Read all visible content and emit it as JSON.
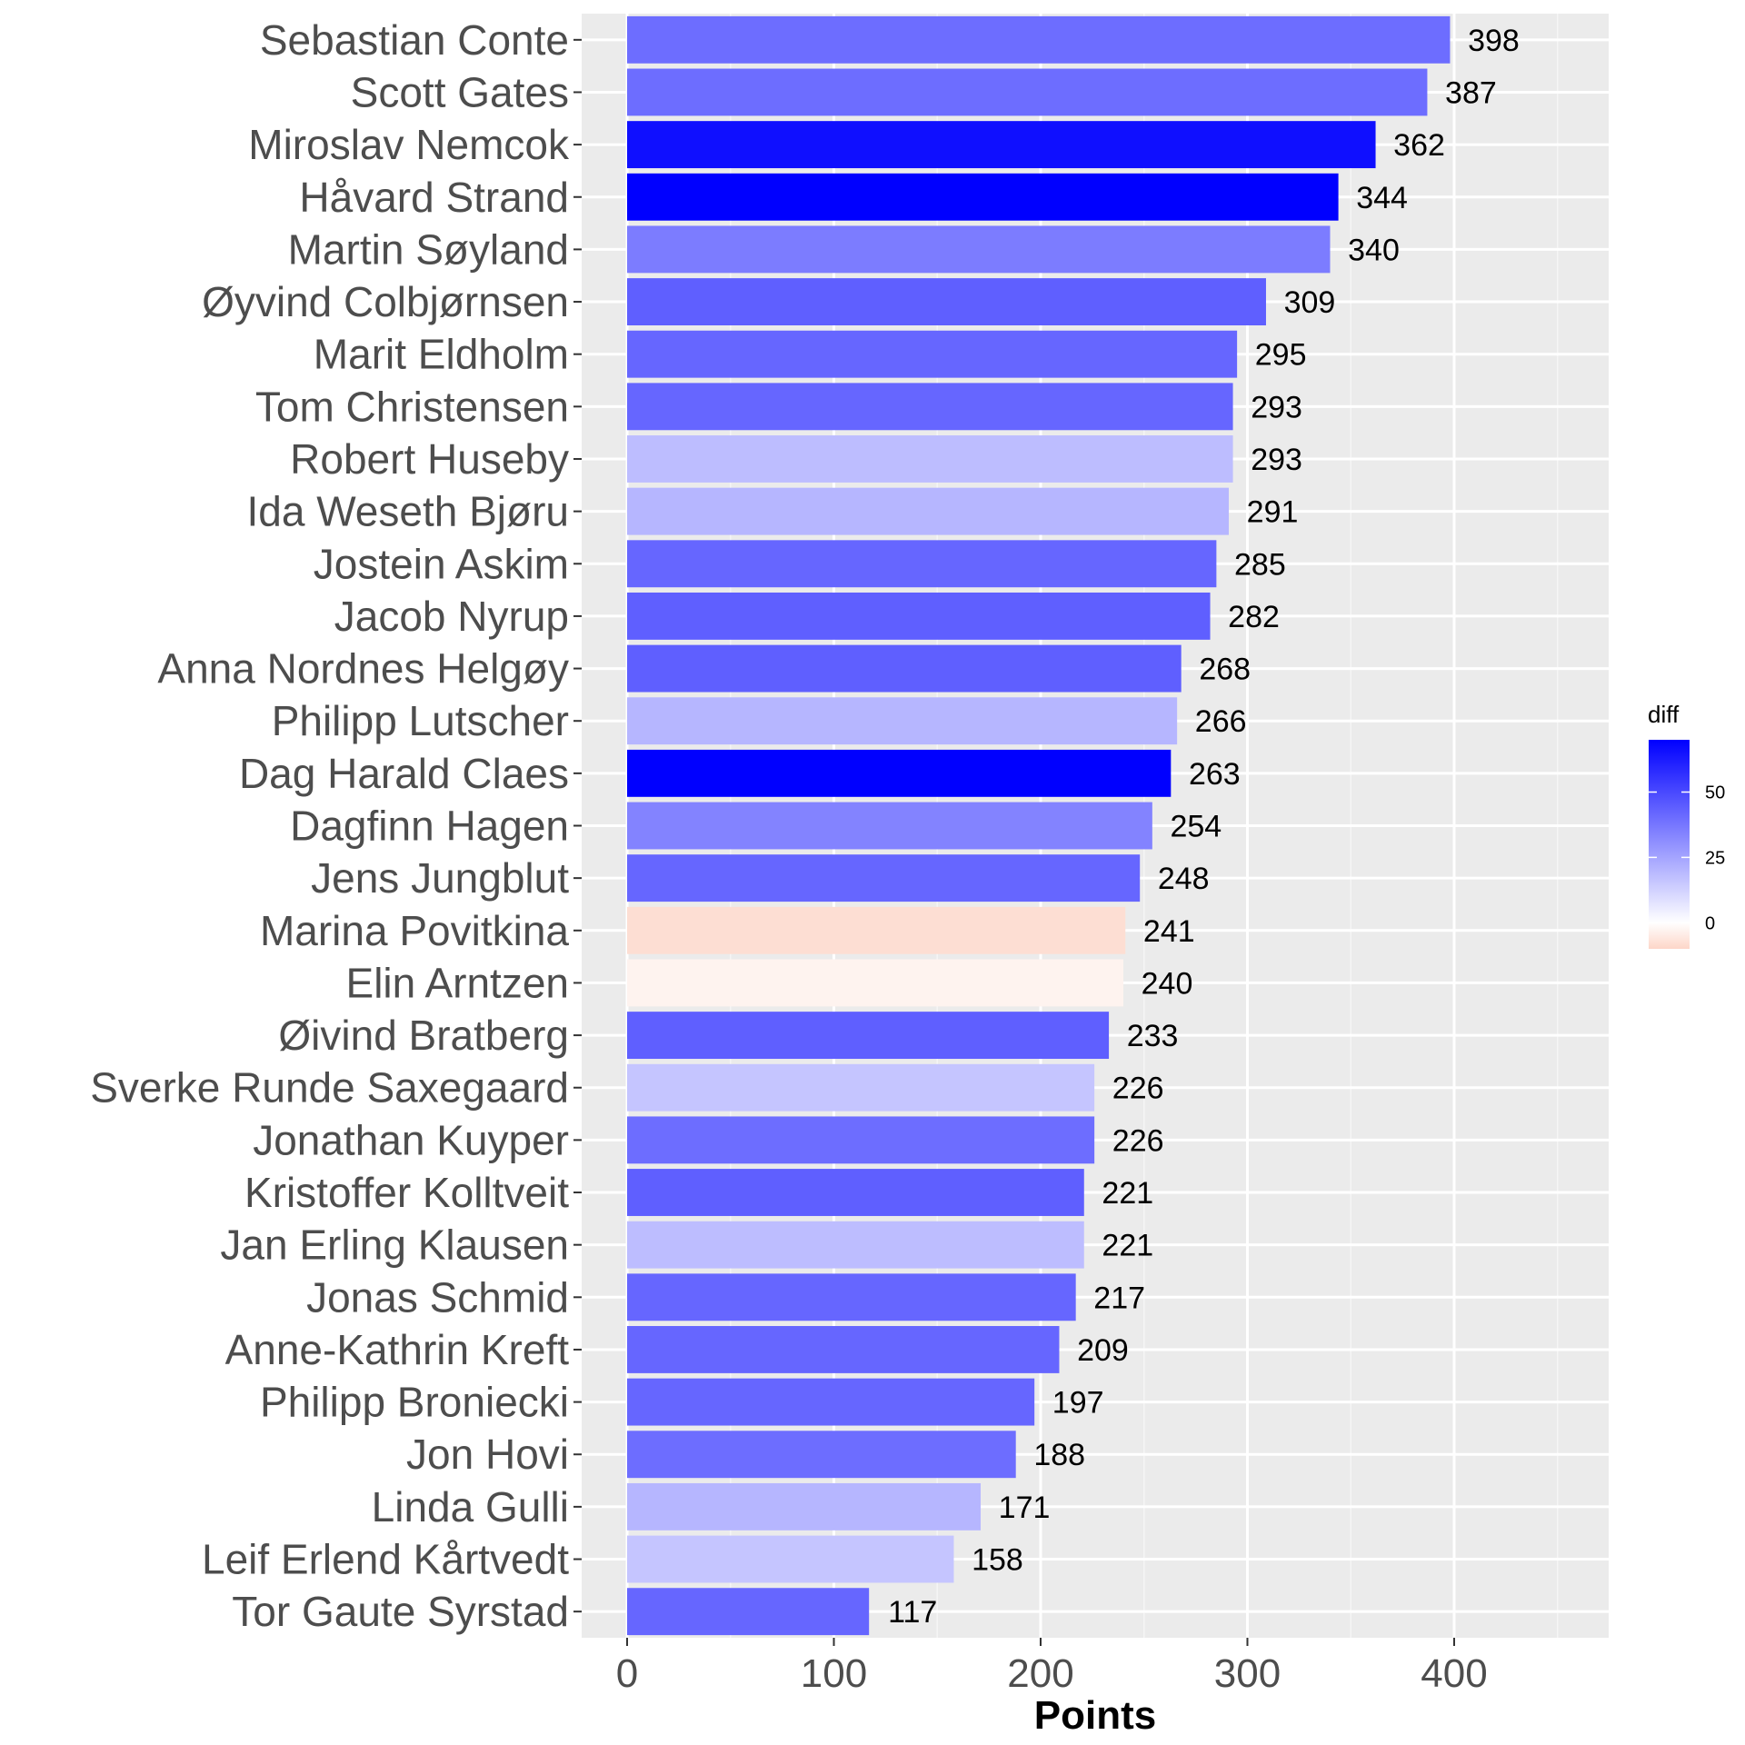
{
  "chart_data": {
    "type": "bar",
    "orientation": "horizontal",
    "xlabel": "Points",
    "ylabel": "",
    "xlim": [
      0,
      460
    ],
    "xticks": [
      0,
      100,
      200,
      300,
      400
    ],
    "grid": true,
    "legend": {
      "title": "diff",
      "position": "right",
      "ticks": [
        0,
        25,
        50
      ],
      "range": [
        -10,
        70
      ],
      "low_color": "#fdd6c8",
      "mid_color": "#ffffff",
      "high_color": "#0000ff"
    },
    "categories": [
      "Sebastian Conte",
      "Scott Gates",
      "Miroslav Nemcok",
      "Håvard Strand",
      "Martin Søyland",
      "Øyvind Colbjørnsen",
      "Marit Eldholm",
      "Tom Christensen",
      "Robert Huseby",
      "Ida Weseth Bjøru",
      "Jostein Askim",
      "Jacob Nyrup",
      "Anna Nordnes Helgøy",
      "Philipp Lutscher",
      "Dag Harald Claes",
      "Dagfinn Hagen",
      "Jens Jungblut",
      "Marina Povitkina",
      "Elin Arntzen",
      "Øivind Bratberg",
      "Sverke Runde Saxegaard",
      "Jonathan Kuyper",
      "Kristoffer Kolltveit",
      "Jan Erling Klausen",
      "Jonas Schmid",
      "Anne-Kathrin Kreft",
      "Philipp Broniecki",
      "Jon Hovi",
      "Linda Gulli",
      "Leif Erlend Kårtvedt",
      "Tor Gaute Syrstad"
    ],
    "values": [
      398,
      387,
      362,
      344,
      340,
      309,
      295,
      293,
      293,
      291,
      285,
      282,
      268,
      266,
      263,
      254,
      248,
      241,
      240,
      233,
      226,
      226,
      221,
      221,
      217,
      209,
      197,
      188,
      171,
      158,
      117
    ],
    "diff": [
      40,
      40,
      66,
      70,
      36,
      44,
      42,
      42,
      18,
      20,
      42,
      44,
      44,
      20,
      70,
      34,
      42,
      -8,
      -3,
      44,
      16,
      40,
      44,
      18,
      42,
      42,
      42,
      40,
      20,
      16,
      42
    ]
  }
}
